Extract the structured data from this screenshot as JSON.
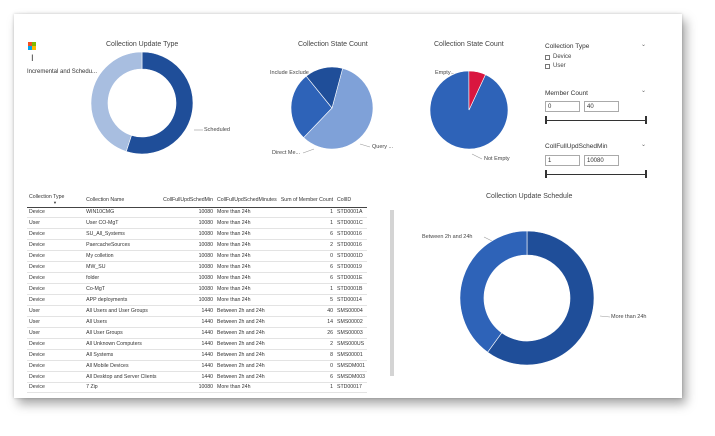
{
  "colors": {
    "dark_blue": "#1f4e99",
    "mid_blue": "#2e63b8",
    "light_blue": "#a8bee0",
    "pie_light": "#7fa1d8",
    "red": "#d9163f"
  },
  "logo": "windows-logo-icon",
  "charts": {
    "update_type": {
      "title": "Collection Update Type",
      "label_left": "Incremental and Schedu...",
      "label_right": "Scheduled"
    },
    "state_count_1": {
      "title": "Collection State Count",
      "label_include": "Include Exclude ...",
      "label_query": "Query ...",
      "label_direct": "Direct Me..."
    },
    "state_count_2": {
      "title": "Collection State Count",
      "label_empty": "Empty",
      "label_not_empty": "Not Empty"
    },
    "update_schedule": {
      "title": "Collection Update Schedule",
      "label_between": "Between 2h and 24h",
      "label_more": "More than 24h"
    }
  },
  "chart_data": [
    {
      "type": "pie",
      "title": "Collection Update Type",
      "categories": [
        "Scheduled",
        "Incremental and Schedu..."
      ],
      "values": [
        55,
        45
      ],
      "donut": true
    },
    {
      "type": "pie",
      "title": "Collection State Count",
      "categories": [
        "Query ...",
        "Direct Me...",
        "Include Exclude ..."
      ],
      "values": [
        58,
        27,
        15
      ]
    },
    {
      "type": "pie",
      "title": "Collection State Count",
      "categories": [
        "Not Empty",
        "Empty"
      ],
      "values": [
        93,
        7
      ]
    },
    {
      "type": "pie",
      "title": "Collection Update Schedule",
      "categories": [
        "More than 24h",
        "Between 2h and 24h"
      ],
      "values": [
        60,
        40
      ],
      "donut": true
    }
  ],
  "slicers": {
    "type": {
      "title": "Collection Type",
      "options": [
        "Device",
        "User"
      ]
    },
    "member": {
      "title": "Member Count",
      "min": "0",
      "max": "40"
    },
    "fullupd": {
      "title": "CollFullUpdSchedMin",
      "min": "1",
      "max": "10080"
    }
  },
  "table": {
    "headers": [
      "Collection Type",
      "Collection Name",
      "CollFullUpdSchedMin",
      "CollFullUpdSchedMinutes",
      "Sum of Member Count",
      "CollID"
    ],
    "rows": [
      [
        "Device",
        "WIN10CMG",
        "10080",
        "More than 24h",
        "1",
        "STD0001A"
      ],
      [
        "User",
        "User CO-MgT",
        "10080",
        "More than 24h",
        "1",
        "STD0001C"
      ],
      [
        "Device",
        "SU_All_Systems",
        "10080",
        "More than 24h",
        "6",
        "STD00016"
      ],
      [
        "Device",
        "PaercacheSources",
        "10080",
        "More than 24h",
        "2",
        "STD00016"
      ],
      [
        "Device",
        "My colletion",
        "10080",
        "More than 24h",
        "0",
        "STD0001D"
      ],
      [
        "Device",
        "MW_SU",
        "10080",
        "More than 24h",
        "6",
        "STD00019"
      ],
      [
        "Device",
        "folder",
        "10080",
        "More than 24h",
        "6",
        "STD0001E"
      ],
      [
        "Device",
        "Co-MgT",
        "10080",
        "More than 24h",
        "1",
        "STD0001B"
      ],
      [
        "Device",
        "APP deployments",
        "10080",
        "More than 24h",
        "5",
        "STD00014"
      ],
      [
        "User",
        "All Users and User Groups",
        "1440",
        "Between 2h and 24h",
        "40",
        "SMS00004"
      ],
      [
        "User",
        "All Users",
        "1440",
        "Between 2h and 24h",
        "14",
        "SMS00002"
      ],
      [
        "User",
        "All User Groups",
        "1440",
        "Between 2h and 24h",
        "26",
        "SMS00003"
      ],
      [
        "Device",
        "All Unknown Computers",
        "1440",
        "Between 2h and 24h",
        "2",
        "SMS000US"
      ],
      [
        "Device",
        "All Systems",
        "1440",
        "Between 2h and 24h",
        "8",
        "SMS00001"
      ],
      [
        "Device",
        "All Mobile Devices",
        "1440",
        "Between 2h and 24h",
        "0",
        "SMSDM001"
      ],
      [
        "Device",
        "All Desktop and Server Clients",
        "1440",
        "Between 2h and 24h",
        "6",
        "SMSDM003"
      ],
      [
        "Device",
        "7 Zip",
        "10080",
        "More than 24h",
        "1",
        "STD00017"
      ]
    ]
  }
}
